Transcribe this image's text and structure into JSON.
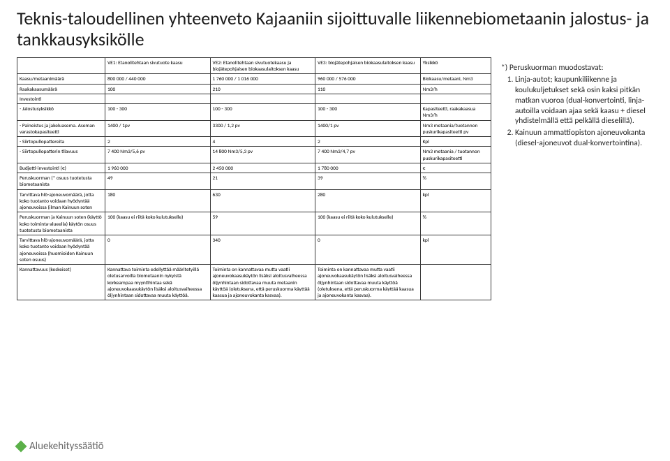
{
  "title": "Teknis-taloudellinen yhteenveto Kajaaniin sijoittuvalle liikennebiometaanin jalostus- ja tankkausyksikölle",
  "headers": {
    "c1": "VE1: Etanolitehtaan sivutuote kaasu",
    "c2": "VE2: Etanolitehtaan sivutuotekaasu ja biojätepohjaisen biokaasulaitoksen kaasu",
    "c3": "VE3: biojätepohjaisen biokaasulaitoksen kaasu",
    "c4": "Yksikkö"
  },
  "rows": {
    "r0": {
      "l": "Kaasu/metaanimäärä",
      "v1": "800 000 / 440 000",
      "v2": "1 760 000 / 1 016 000",
      "v3": "960 000 / 576 000",
      "u": "Biokaasu/metaani, Nm3"
    },
    "r1": {
      "l": "Raakakaasumäärä",
      "v1": "100",
      "v2": "210",
      "v3": "110",
      "u": "Nm3/h"
    },
    "r2": {
      "l": "Investointi",
      "v1": "",
      "v2": "",
      "v3": "",
      "u": ""
    },
    "r3": {
      "l": " - Jalostusyksikkö",
      "v1": "100 - 300",
      "v2": "100 - 300",
      "v3": "100 - 300",
      "u": "Kapasiteetti, raakakaasua Nm3/h"
    },
    "r4": {
      "l": " - Paineistus ja jakeluasema. Aseman varastokapasiteetti",
      "v1": "1400 / 1pv",
      "v2": "3300 / 1,2 pv",
      "v3": "1400/1 pv",
      "u": "Nm3 metaania/tuotannon puskurikapasiteetti pv"
    },
    "r5": {
      "l": " - Siirtopullopattereita",
      "v1": "2",
      "v2": "4",
      "v3": "2",
      "u": "Kpl"
    },
    "r6": {
      "l": " - Siirtopullopatterin tilavuus",
      "v1": "7 400 Nm3/5,6 pv",
      "v2": "14 800 Nm3/5,3 pv",
      "v3": "7 400 Nm3/4,7 pv",
      "u": "Nm3 metaania / tuotannon puskurikapasiteetti"
    },
    "r7": {
      "l": "Budjetti-investointi (€)",
      "v1": "1 960 000",
      "v2": "2 450 000",
      "v3": "1 780 000",
      "u": "€"
    },
    "r8": {
      "l": "Peruskuorman (* osuus tuotetusta biometaanista",
      "v1": "49",
      "v2": "21",
      "v3": "39",
      "u": "%"
    },
    "r9": {
      "l": "Tarvittava hlö-ajoneuvomäärä, jotta koko tuotanto voidaan hyödyntää ajoneuvoissa (ilman Kainuun soten",
      "v1": "180",
      "v2": "630",
      "v3": "280",
      "u": "kpl"
    },
    "r10": {
      "l": "Peruskuorman ja Kainuun soten (käyttö koko toiminta-alueella) käytön osuus tuotetusta biometaanista",
      "v1": "100 (kaasu ei riitä koko kulutukselle)",
      "v2": "59",
      "v3": "100 (kaasu ei riitä koko kulutukselle)",
      "u": "%"
    },
    "r11": {
      "l": "Tarvittava hlö-ajoneuvomäärä, jotta koko tuotanto voidaan hyödyntää ajoneuvoissa (huomioiden Kainuun soten osuus)",
      "v1": "0",
      "v2": "340",
      "v3": "0",
      "u": "kpl"
    },
    "r12": {
      "l": "Kannattavuus (keskeiset)",
      "v1": "Kannattava toiminta edellyttää määritetyillä oletusarvoilla biometaanin nykyistä korkeampaa myyntihintaa sekä ajoneuvokaasukäytön lisäksi aloitusvaiheessa öljynhintaan sidottavaa muuta käyttöä.",
      "v2": "Toiminta on kannattavaa mutta vaatii ajoneuvokaasukäytön lisäksi aloitusvaiheessa öljynhintaan sidottavaa muuta metaanin käyttöä (oletuksena, että peruskuorma käyttää kaasua ja ajoneuvokanta kasvaa).",
      "v3": "Toiminta on kannattavaa mutta vaatii ajoneuvokaasukäytön lisäksi aloitusvaiheessa öljynhintaan sidottavaa muuta käyttöä (oletuksena, että peruskuorma käyttää kaasua ja ajoneuvokanta kasvaa).",
      "u": ""
    }
  },
  "notes": {
    "heading": "*) Peruskuorman muodostavat:",
    "item1": "Linja-autot; kaupunkiliikenne ja koulukuljetukset sekä osin kaksi pitkän matkan vuoroa (dual-konvertointi, linja-autoilla voidaan ajaa sekä kaasu + diesel yhdistelmällä että pelkällä dieselillä).",
    "item2": "Kainuun ammattiopiston ajoneuvokanta (diesel-ajoneuvot dual-konvertointina)."
  },
  "footer": "Aluekehityssäätiö"
}
